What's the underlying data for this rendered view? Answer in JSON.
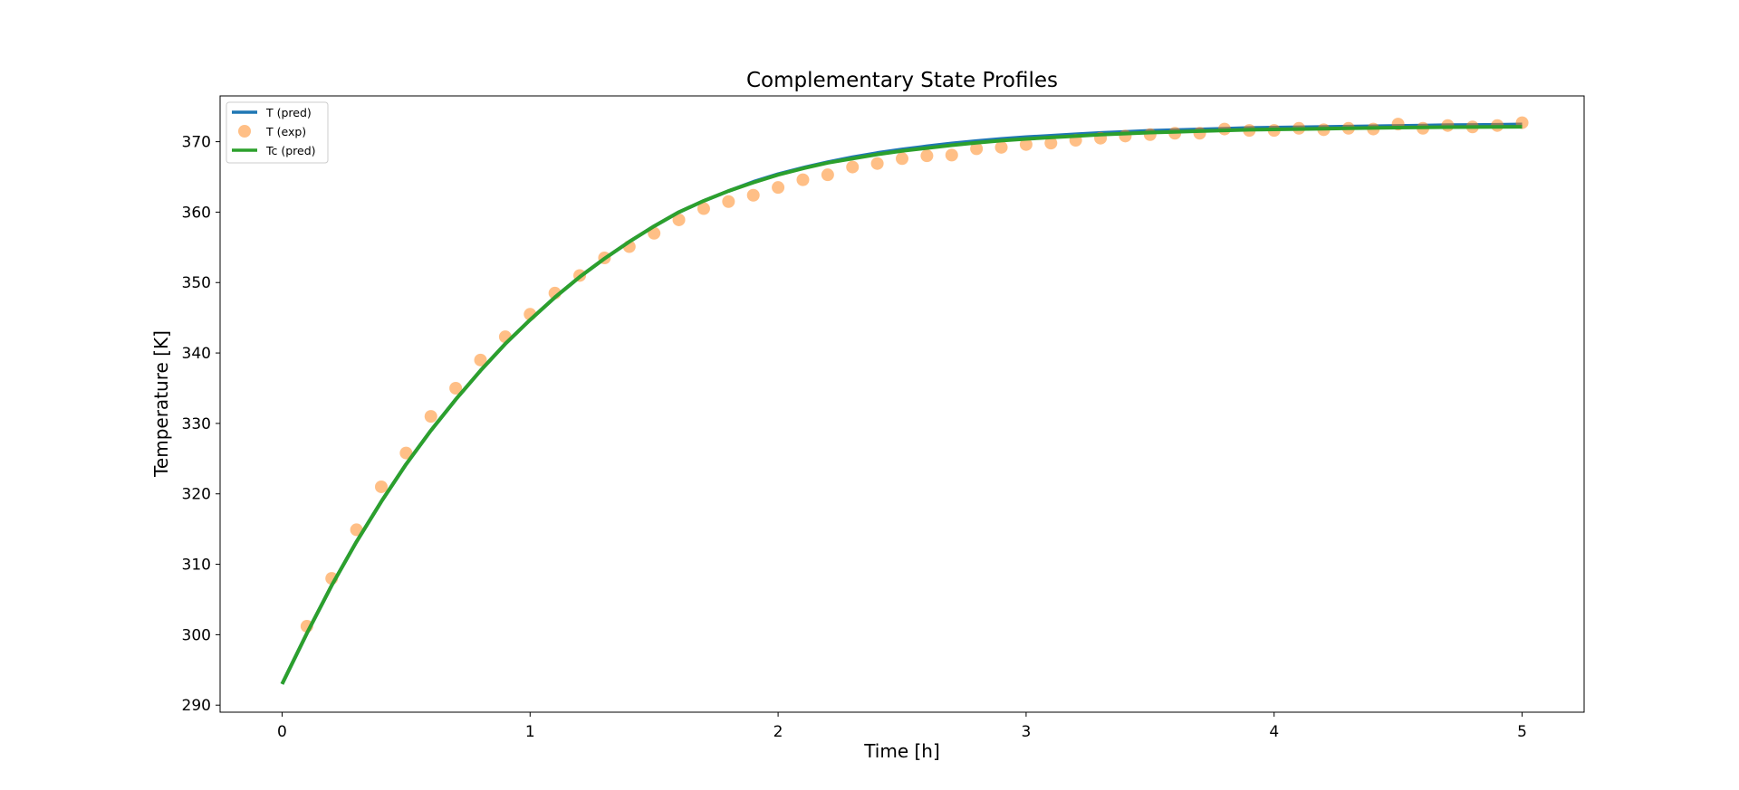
{
  "colors": {
    "t_pred": "#1f77b4",
    "t_exp": "#ff7f0e",
    "tc_pred": "#2ca02c",
    "axes": "#000000",
    "legend_border": "#cccccc",
    "background": "#ffffff"
  },
  "chart_data": {
    "type": "line",
    "title": "Complementary State Profiles",
    "xlabel": "Time [h]",
    "ylabel": "Temperature [K]",
    "xlim": [
      -0.25,
      5.25
    ],
    "ylim": [
      289,
      376.5
    ],
    "x_ticks": [
      0,
      1,
      2,
      3,
      4,
      5
    ],
    "x_tick_labels": [
      "0",
      "1",
      "2",
      "3",
      "4",
      "5"
    ],
    "y_ticks": [
      290,
      300,
      310,
      320,
      330,
      340,
      350,
      360,
      370
    ],
    "y_tick_labels": [
      "290",
      "300",
      "310",
      "320",
      "330",
      "340",
      "350",
      "360",
      "370"
    ],
    "grid": false,
    "legend_position": "top-left",
    "series": [
      {
        "name": "T (pred)",
        "kind": "line",
        "color_key": "t_pred",
        "x": [
          0,
          0.1,
          0.2,
          0.3,
          0.4,
          0.5,
          0.6,
          0.7,
          0.8,
          0.9,
          1.0,
          1.1,
          1.2,
          1.3,
          1.4,
          1.5,
          1.6,
          1.7,
          1.8,
          1.9,
          2.0,
          2.1,
          2.2,
          2.3,
          2.4,
          2.5,
          2.6,
          2.7,
          2.8,
          2.9,
          3.0,
          3.1,
          3.2,
          3.3,
          3.4,
          3.5,
          3.6,
          3.7,
          3.8,
          3.9,
          4.0,
          4.1,
          4.2,
          4.3,
          4.4,
          4.5,
          4.6,
          4.7,
          4.8,
          4.9,
          5.0
        ],
        "y": [
          293.0,
          300.2,
          307.0,
          313.2,
          318.9,
          324.2,
          329.0,
          333.4,
          337.5,
          341.3,
          344.7,
          347.9,
          350.8,
          353.4,
          355.8,
          358.0,
          360.0,
          361.6,
          363.0,
          364.3,
          365.4,
          366.3,
          367.1,
          367.8,
          368.4,
          368.9,
          369.35,
          369.75,
          370.1,
          370.4,
          370.65,
          370.85,
          371.05,
          371.25,
          371.4,
          371.55,
          371.65,
          371.75,
          371.85,
          371.95,
          372.0,
          372.05,
          372.1,
          372.15,
          372.2,
          372.25,
          372.3,
          372.35,
          372.38,
          372.4,
          372.45
        ]
      },
      {
        "name": "T (exp)",
        "kind": "scatter",
        "color_key": "t_exp",
        "x": [
          0.1,
          0.2,
          0.3,
          0.4,
          0.5,
          0.6,
          0.7,
          0.8,
          0.9,
          1.0,
          1.1,
          1.2,
          1.3,
          1.4,
          1.5,
          1.6,
          1.7,
          1.8,
          1.9,
          2.0,
          2.1,
          2.2,
          2.3,
          2.4,
          2.5,
          2.6,
          2.7,
          2.8,
          2.9,
          3.0,
          3.1,
          3.2,
          3.3,
          3.4,
          3.5,
          3.6,
          3.7,
          3.8,
          3.9,
          4.0,
          4.1,
          4.2,
          4.3,
          4.4,
          4.5,
          4.6,
          4.7,
          4.8,
          4.9,
          5.0
        ],
        "y": [
          301.2,
          308.0,
          314.9,
          321.0,
          325.8,
          331.0,
          335.0,
          339.0,
          342.3,
          345.5,
          348.5,
          351.0,
          353.5,
          355.1,
          357.0,
          358.9,
          360.5,
          361.5,
          362.4,
          363.5,
          364.6,
          365.3,
          366.4,
          366.9,
          367.6,
          368.0,
          368.1,
          369.0,
          369.2,
          369.6,
          369.8,
          370.2,
          370.5,
          370.8,
          371.0,
          371.2,
          371.2,
          371.8,
          371.6,
          371.6,
          371.9,
          371.7,
          371.9,
          371.8,
          372.5,
          371.9,
          372.3,
          372.1,
          372.3,
          372.7
        ]
      },
      {
        "name": "Tc (pred)",
        "kind": "line",
        "color_key": "tc_pred",
        "x": [
          0,
          0.1,
          0.2,
          0.3,
          0.4,
          0.5,
          0.6,
          0.7,
          0.8,
          0.9,
          1.0,
          1.1,
          1.2,
          1.3,
          1.4,
          1.5,
          1.6,
          1.7,
          1.8,
          1.9,
          2.0,
          2.1,
          2.2,
          2.3,
          2.4,
          2.5,
          2.6,
          2.7,
          2.8,
          2.9,
          3.0,
          3.1,
          3.2,
          3.3,
          3.4,
          3.5,
          3.6,
          3.7,
          3.8,
          3.9,
          4.0,
          4.1,
          4.2,
          4.3,
          4.4,
          4.5,
          4.6,
          4.7,
          4.8,
          4.9,
          5.0
        ],
        "y": [
          293.0,
          300.2,
          307.0,
          313.2,
          318.9,
          324.2,
          329.0,
          333.4,
          337.5,
          341.3,
          344.7,
          347.9,
          350.8,
          353.4,
          355.8,
          358.0,
          360.0,
          361.6,
          363.0,
          364.2,
          365.3,
          366.2,
          367.0,
          367.6,
          368.2,
          368.7,
          369.1,
          369.5,
          369.85,
          370.15,
          370.4,
          370.6,
          370.8,
          371.0,
          371.15,
          371.3,
          371.4,
          371.5,
          371.6,
          371.7,
          371.75,
          371.8,
          371.85,
          371.9,
          371.95,
          372.0,
          372.03,
          372.06,
          372.08,
          372.1,
          372.12
        ]
      }
    ]
  }
}
